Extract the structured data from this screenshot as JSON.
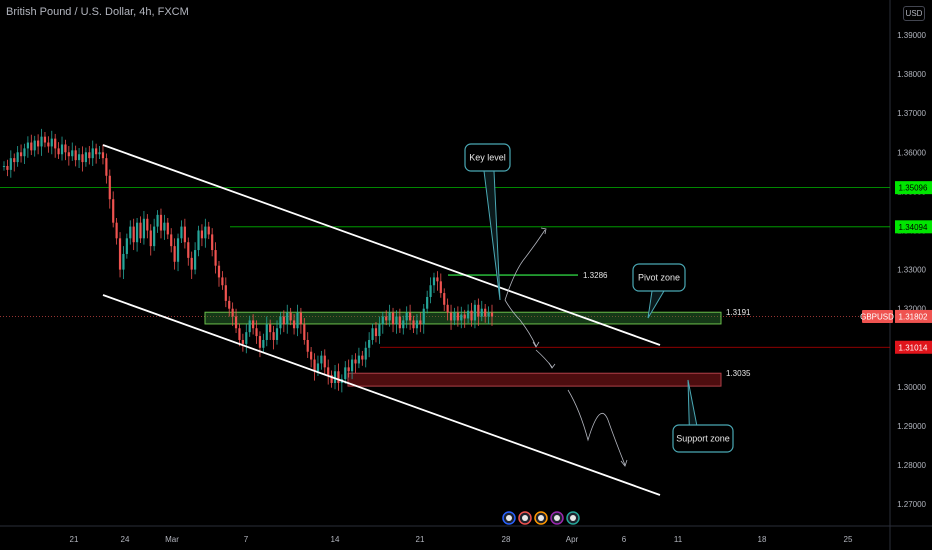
{
  "header": {
    "title": "British Pound / U.S. Dollar, 4h, FXCM",
    "currency": "USD"
  },
  "colors": {
    "background": "#000000",
    "bull": "#26a69a",
    "bear": "#ef5350",
    "channel": "#ffffff",
    "green_level": "#00c800",
    "red_level": "#d40000",
    "pivot_fill": "#2e7d32",
    "support_fill": "#5a0f12",
    "note_border": "#4aa8b4"
  },
  "chart_data": {
    "type": "candlestick",
    "symbol": "GBPUSD",
    "timeframe": "4h",
    "ylim": [
      1.2655,
      1.3965
    ],
    "y_ticks": [
      "1.39000",
      "1.38000",
      "1.37000",
      "1.36000",
      "1.35000",
      "1.34000",
      "1.33000",
      "1.32000",
      "1.31000",
      "1.30000",
      "1.29000",
      "1.28000",
      "1.27000"
    ],
    "x_ticks": [
      "21",
      "24",
      "Mar",
      "7",
      "14",
      "21",
      "28",
      "Apr",
      "6",
      "11",
      "18",
      "25"
    ],
    "price_tags": [
      {
        "label": "1.35096",
        "value": 1.35096,
        "style": "green"
      },
      {
        "label": "1.34094",
        "value": 1.34094,
        "style": "green"
      },
      {
        "label": "1.31802",
        "symbol": "GBPUSD",
        "value": 1.31802,
        "style": "current"
      },
      {
        "label": "1.31014",
        "value": 1.31014,
        "style": "red"
      }
    ],
    "levels": [
      {
        "label": "1.3286",
        "value": 1.3286
      },
      {
        "label": "1.3191",
        "value": 1.3191
      },
      {
        "label": "1.3035",
        "value": 1.3035
      }
    ],
    "zones": [
      {
        "name": "Pivot zone",
        "top": 1.3191,
        "bottom": 1.3161
      },
      {
        "name": "Support zone",
        "top": 1.3035,
        "bottom": 1.3002
      }
    ],
    "annotations": [
      "Key level",
      "Pivot zone",
      "Support zone"
    ],
    "candles": {
      "start_price": 1.3565,
      "closes": [
        1.3565,
        1.3555,
        1.3585,
        1.3575,
        1.36,
        1.359,
        1.361,
        1.3625,
        1.3605,
        1.363,
        1.3615,
        1.364,
        1.3625,
        1.3615,
        1.3635,
        1.361,
        1.3595,
        1.362,
        1.36,
        1.359,
        1.3605,
        1.358,
        1.3595,
        1.3575,
        1.36,
        1.3585,
        1.361,
        1.3595,
        1.36,
        1.3585,
        1.354,
        1.348,
        1.342,
        1.338,
        1.33,
        1.334,
        1.338,
        1.341,
        1.337,
        1.342,
        1.338,
        1.343,
        1.34,
        1.336,
        1.341,
        1.344,
        1.34,
        1.342,
        1.339,
        1.336,
        1.332,
        1.338,
        1.341,
        1.337,
        1.333,
        1.33,
        1.335,
        1.34,
        1.338,
        1.341,
        1.339,
        1.335,
        1.331,
        1.328,
        1.326,
        1.322,
        1.32,
        1.318,
        1.315,
        1.312,
        1.311,
        1.314,
        1.317,
        1.315,
        1.313,
        1.31,
        1.312,
        1.316,
        1.314,
        1.312,
        1.315,
        1.318,
        1.316,
        1.319,
        1.317,
        1.315,
        1.319,
        1.316,
        1.312,
        1.309,
        1.307,
        1.304,
        1.306,
        1.308,
        1.305,
        1.303,
        1.301,
        1.304,
        1.301,
        1.302,
        1.305,
        1.304,
        1.307,
        1.306,
        1.308,
        1.307,
        1.31,
        1.312,
        1.315,
        1.313,
        1.316,
        1.318,
        1.317,
        1.319,
        1.316,
        1.318,
        1.315,
        1.317,
        1.319,
        1.317,
        1.315,
        1.317,
        1.316,
        1.32,
        1.323,
        1.326,
        1.328,
        1.327,
        1.324,
        1.321,
        1.319,
        1.317,
        1.319,
        1.317,
        1.3185,
        1.3175,
        1.3195,
        1.317,
        1.321,
        1.318,
        1.32,
        1.318,
        1.319,
        1.318
      ]
    }
  }
}
